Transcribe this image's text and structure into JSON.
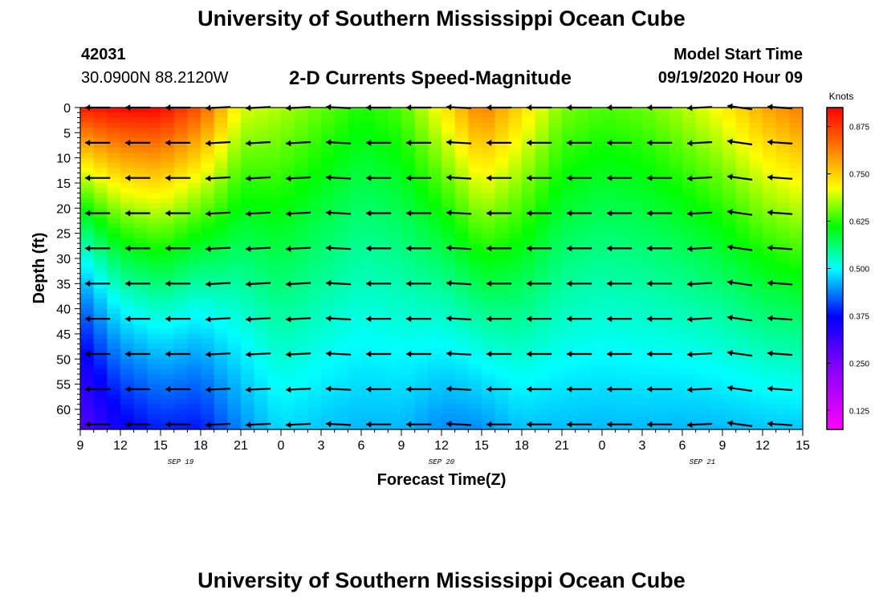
{
  "header": {
    "title": "University of Southern Mississippi Ocean Cube",
    "station_id": "42031",
    "coordinates": "30.0900N 88.2120W",
    "plot_title": "2-D Currents Speed-Magnitude",
    "model_start_label": "Model Start Time",
    "model_start_value": "09/19/2020 Hour 09"
  },
  "footer": {
    "title": "University of Southern Mississippi Ocean Cube"
  },
  "chart_data": {
    "type": "heatmap",
    "title": "2-D Currents Speed-Magnitude",
    "xlabel": "Forecast Time(Z)",
    "ylabel": "Depth (ft)",
    "x_hours": [
      0,
      3,
      6,
      9,
      12,
      15,
      18,
      21,
      24,
      27,
      30,
      33,
      36,
      39,
      42,
      45,
      48,
      51,
      54
    ],
    "x_tick_labels": [
      "9",
      "12",
      "15",
      "18",
      "21",
      "0",
      "3",
      "6",
      "9",
      "12",
      "15",
      "18",
      "21",
      "0",
      "3",
      "6",
      "9",
      "12",
      "15"
    ],
    "x_range_hours": [
      0,
      54
    ],
    "date_labels": [
      {
        "label": "SEP 19",
        "hour": 7.5
      },
      {
        "label": "SEP 20",
        "hour": 27
      },
      {
        "label": "SEP 21",
        "hour": 46.5
      }
    ],
    "y_ticks": [
      0,
      5,
      10,
      15,
      20,
      25,
      30,
      35,
      40,
      45,
      50,
      55,
      60
    ],
    "y_range": [
      0,
      64
    ],
    "colorbar": {
      "label": "Knots",
      "ticks": [
        0.125,
        0.25,
        0.375,
        0.5,
        0.625,
        0.75,
        0.875
      ],
      "range": [
        0.075,
        0.925
      ],
      "colors": [
        "#ff00ff",
        "#7f00ff",
        "#0000ff",
        "#00ffff",
        "#00ff00",
        "#ffff00",
        "#ff8000",
        "#ff0000"
      ]
    },
    "surface_speed_knots": [
      {
        "hour": 0,
        "value": 0.9
      },
      {
        "hour": 3,
        "value": 0.92
      },
      {
        "hour": 6,
        "value": 0.92
      },
      {
        "hour": 9,
        "value": 0.85
      },
      {
        "hour": 12,
        "value": 0.7
      },
      {
        "hour": 15,
        "value": 0.68
      },
      {
        "hour": 18,
        "value": 0.65
      },
      {
        "hour": 21,
        "value": 0.62
      },
      {
        "hour": 24,
        "value": 0.64
      },
      {
        "hour": 27,
        "value": 0.72
      },
      {
        "hour": 30,
        "value": 0.82
      },
      {
        "hour": 33,
        "value": 0.74
      },
      {
        "hour": 36,
        "value": 0.66
      },
      {
        "hour": 39,
        "value": 0.64
      },
      {
        "hour": 42,
        "value": 0.65
      },
      {
        "hour": 45,
        "value": 0.68
      },
      {
        "hour": 48,
        "value": 0.72
      },
      {
        "hour": 51,
        "value": 0.78
      },
      {
        "hour": 54,
        "value": 0.82
      }
    ],
    "depth_05_knot_ft": [
      {
        "hour": 0,
        "value": 30
      },
      {
        "hour": 3,
        "value": 40
      },
      {
        "hour": 6,
        "value": 44
      },
      {
        "hour": 9,
        "value": 41
      },
      {
        "hour": 12,
        "value": 46
      },
      {
        "hour": 15,
        "value": 57
      },
      {
        "hour": 18,
        "value": 52
      },
      {
        "hour": 21,
        "value": 47
      },
      {
        "hour": 24,
        "value": 49
      },
      {
        "hour": 27,
        "value": 47
      },
      {
        "hour": 30,
        "value": 51
      },
      {
        "hour": 33,
        "value": 55
      },
      {
        "hour": 36,
        "value": 51
      },
      {
        "hour": 39,
        "value": 49
      },
      {
        "hour": 42,
        "value": 50
      },
      {
        "hour": 45,
        "value": 51
      },
      {
        "hour": 48,
        "value": 53
      },
      {
        "hour": 51,
        "value": 56
      },
      {
        "hour": 54,
        "value": 57
      }
    ],
    "vector_hours": [
      1.3,
      4.3,
      7.3,
      10.3,
      13.3,
      16.3,
      19.3,
      22.3,
      25.3,
      28.3,
      31.3,
      34.3,
      37.3,
      40.3,
      43.3,
      46.3,
      49.3,
      52.3
    ],
    "vector_depths_ft": [
      0,
      7,
      14,
      21,
      28,
      35,
      42,
      49,
      56,
      63
    ],
    "vector_direction": "westward, slight north tilt",
    "vector_tilt_deg": [
      0,
      0,
      0,
      -3,
      -3,
      -3,
      3,
      0,
      0,
      3,
      0,
      0,
      0,
      0,
      0,
      -3,
      8,
      4
    ]
  }
}
